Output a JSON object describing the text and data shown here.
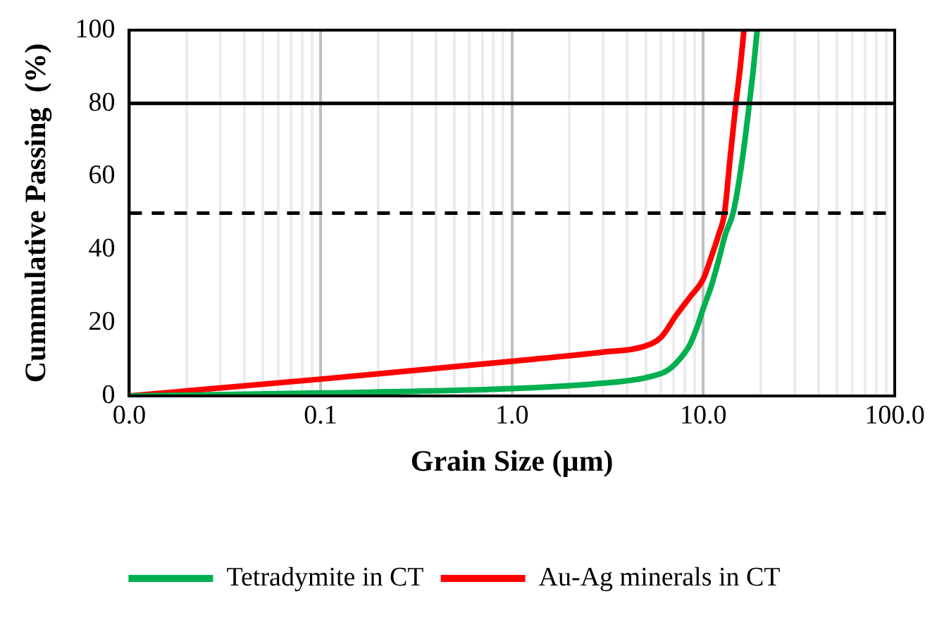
{
  "chart_data": {
    "type": "line",
    "xlabel": "Grain Size (µm)",
    "ylabel": "Cummulative Passing  (%)",
    "log": "x",
    "xlim": [
      0.01,
      100
    ],
    "ylim": [
      0,
      100
    ],
    "xticks": [
      {
        "value": 0.01,
        "label": "0.0"
      },
      {
        "value": 0.02,
        "label": null
      },
      {
        "value": 0.03,
        "label": null
      },
      {
        "value": 0.04,
        "label": null
      },
      {
        "value": 0.05,
        "label": null
      },
      {
        "value": 0.06,
        "label": null
      },
      {
        "value": 0.07,
        "label": null
      },
      {
        "value": 0.08,
        "label": null
      },
      {
        "value": 0.09,
        "label": null
      },
      {
        "value": 0.1,
        "label": "0.1"
      },
      {
        "value": 0.2,
        "label": null
      },
      {
        "value": 0.3,
        "label": null
      },
      {
        "value": 0.4,
        "label": null
      },
      {
        "value": 0.5,
        "label": null
      },
      {
        "value": 0.6,
        "label": null
      },
      {
        "value": 0.7,
        "label": null
      },
      {
        "value": 0.8,
        "label": null
      },
      {
        "value": 0.9,
        "label": null
      },
      {
        "value": 1,
        "label": "1.0"
      },
      {
        "value": 2,
        "label": null
      },
      {
        "value": 3,
        "label": null
      },
      {
        "value": 4,
        "label": null
      },
      {
        "value": 5,
        "label": null
      },
      {
        "value": 6,
        "label": null
      },
      {
        "value": 7,
        "label": null
      },
      {
        "value": 8,
        "label": null
      },
      {
        "value": 9,
        "label": null
      },
      {
        "value": 10,
        "label": "10.0"
      },
      {
        "value": 20,
        "label": null
      },
      {
        "value": 30,
        "label": null
      },
      {
        "value": 40,
        "label": null
      },
      {
        "value": 50,
        "label": null
      },
      {
        "value": 60,
        "label": null
      },
      {
        "value": 70,
        "label": null
      },
      {
        "value": 80,
        "label": null
      },
      {
        "value": 90,
        "label": null
      },
      {
        "value": 100,
        "label": "100.0"
      }
    ],
    "yticks": [
      0,
      20,
      40,
      60,
      80,
      100
    ],
    "grid": "x",
    "legend": "bottom",
    "marker": "none",
    "line_style": "solid",
    "ref_lines": [
      {
        "axis": "y",
        "value": 80,
        "color": "#000000",
        "line_style": "solid"
      },
      {
        "axis": "y",
        "value": 50,
        "color": "#000000",
        "line_style": "dashed"
      }
    ],
    "series": [
      {
        "name": "Tetradymite in CT",
        "color": "#00b050",
        "x": [
          0.01,
          0.1,
          1,
          3,
          5,
          6.5,
          7.5,
          8.5,
          9.3,
          10,
          11,
          12,
          13,
          14.3,
          15.5,
          16.5,
          17.4,
          18.3,
          19.1
        ],
        "values": [
          0,
          0.8,
          2,
          3.5,
          5,
          7,
          10,
          14,
          19,
          24,
          30,
          37,
          44,
          50,
          60,
          70,
          80,
          90,
          100
        ]
      },
      {
        "name": "Au-Ag minerals in CT",
        "color": "#ff0000",
        "x": [
          0.01,
          0.1,
          1,
          3,
          4.8,
          6,
          7.2,
          8.5,
          10,
          11,
          12,
          12.9,
          13.8,
          14.8,
          15.6,
          16.3
        ],
        "values": [
          0,
          4.6,
          9.5,
          12,
          13.4,
          16,
          22,
          27,
          32,
          38,
          44,
          50,
          65,
          80,
          90,
          100
        ]
      }
    ]
  }
}
